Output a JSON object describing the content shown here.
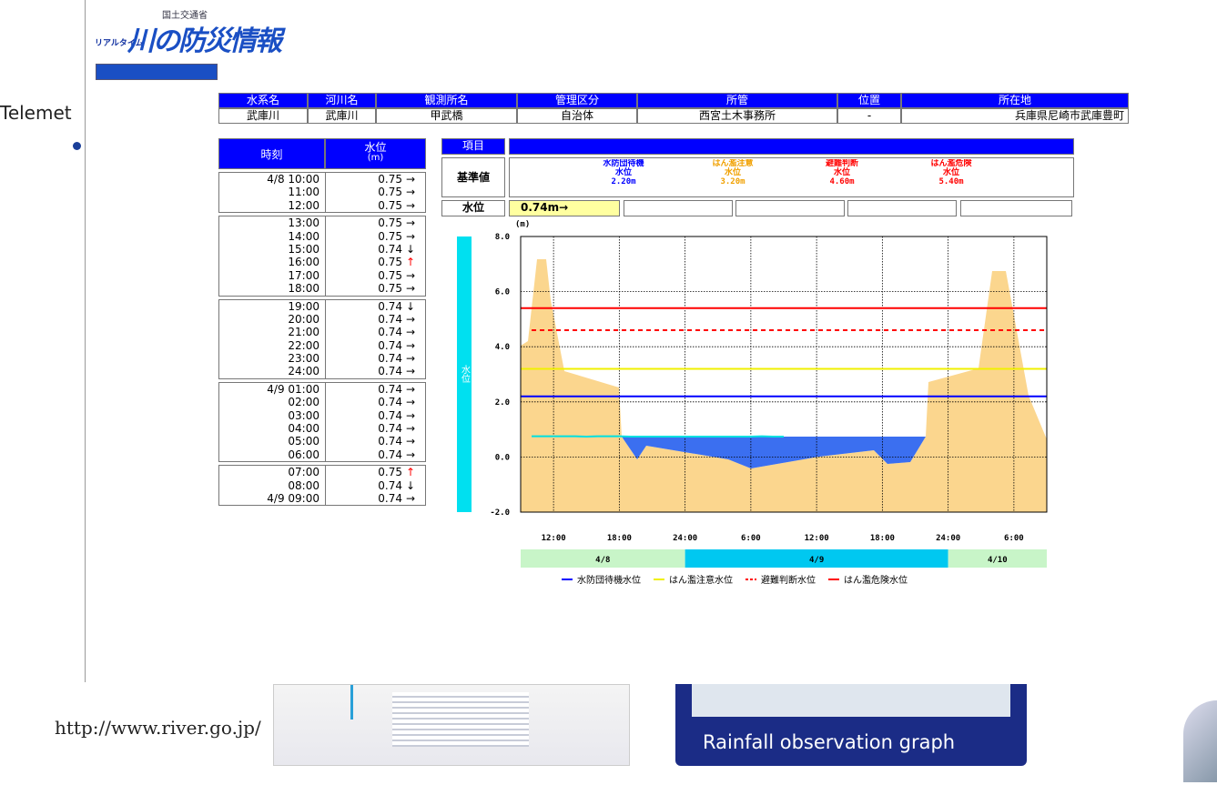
{
  "header": {
    "ministry": "国土交通省",
    "tagline": "リアルタイム",
    "title": "川の防災情報"
  },
  "side_text": "Telemet",
  "station_table": {
    "headers": [
      "水系名",
      "河川名",
      "観測所名",
      "管理区分",
      "所管",
      "位置",
      "所在地"
    ],
    "values": [
      "武庫川",
      "武庫川",
      "甲武橋",
      "自治体",
      "西宮土木事務所",
      "-",
      "兵庫県尼崎市武庫豊町"
    ]
  },
  "level_table": {
    "headers": [
      "時刻",
      "水位"
    ],
    "unit": "(m)",
    "groups": [
      [
        [
          "4/8 10:00",
          0.75,
          "→"
        ],
        [
          "11:00",
          0.75,
          "→"
        ],
        [
          "12:00",
          0.75,
          "→"
        ]
      ],
      [
        [
          "13:00",
          0.75,
          "→"
        ],
        [
          "14:00",
          0.75,
          "→"
        ],
        [
          "15:00",
          0.74,
          "↓"
        ],
        [
          "16:00",
          0.75,
          "↑"
        ],
        [
          "17:00",
          0.75,
          "→"
        ],
        [
          "18:00",
          0.75,
          "→"
        ]
      ],
      [
        [
          "19:00",
          0.74,
          "↓"
        ],
        [
          "20:00",
          0.74,
          "→"
        ],
        [
          "21:00",
          0.74,
          "→"
        ],
        [
          "22:00",
          0.74,
          "→"
        ],
        [
          "23:00",
          0.74,
          "→"
        ],
        [
          "24:00",
          0.74,
          "→"
        ]
      ],
      [
        [
          "4/9 01:00",
          0.74,
          "→"
        ],
        [
          "02:00",
          0.74,
          "→"
        ],
        [
          "03:00",
          0.74,
          "→"
        ],
        [
          "04:00",
          0.74,
          "→"
        ],
        [
          "05:00",
          0.74,
          "→"
        ],
        [
          "06:00",
          0.74,
          "→"
        ]
      ],
      [
        [
          "07:00",
          0.75,
          "↑"
        ],
        [
          "08:00",
          0.74,
          "↓"
        ],
        [
          "4/9 09:00",
          0.74,
          "→"
        ]
      ]
    ]
  },
  "reference": {
    "item_label": "項目",
    "base_label": "基準値",
    "water_label": "水位",
    "current": "0.74m→",
    "levels": [
      {
        "name": "水防団待機",
        "sub": "水位",
        "value": "2.20m",
        "color": "#0000ff"
      },
      {
        "name": "はん濫注意",
        "sub": "水位",
        "value": "3.20m",
        "color": "#f0a000"
      },
      {
        "name": "避難判断",
        "sub": "水位",
        "value": "4.60m",
        "color": "#ff0000"
      },
      {
        "name": "はん濫危険",
        "sub": "水位",
        "value": "5.40m",
        "color": "#ff0000"
      }
    ]
  },
  "chart_data": {
    "type": "line",
    "y_label": "水位",
    "unit": "(m)",
    "xlim": [
      9,
      57
    ],
    "xticks": [
      {
        "value": 12,
        "label": "12:00"
      },
      {
        "value": 18,
        "label": "18:00"
      },
      {
        "value": 24,
        "label": "24:00"
      },
      {
        "value": 30,
        "label": "6:00"
      },
      {
        "value": 36,
        "label": "12:00"
      },
      {
        "value": 42,
        "label": "18:00"
      },
      {
        "value": 48,
        "label": "24:00"
      },
      {
        "value": 54,
        "label": "6:00"
      }
    ],
    "ylim": [
      -2,
      8
    ],
    "yticks": [
      {
        "value": -2,
        "label": "-2.0"
      },
      {
        "value": 0,
        "label": "0.0"
      },
      {
        "value": 2,
        "label": "2.0"
      },
      {
        "value": 4,
        "label": "4.0"
      },
      {
        "value": 6,
        "label": "6.0"
      },
      {
        "value": 8,
        "label": "8.0"
      }
    ],
    "grid": true,
    "dates": [
      "4/8",
      "4/9",
      "4/10"
    ],
    "x": [
      10,
      11,
      12,
      13,
      14,
      15,
      16,
      17,
      18,
      19,
      20,
      21,
      22,
      23,
      24,
      25,
      26,
      27,
      28,
      29,
      30,
      31,
      32,
      33
    ],
    "series": [
      {
        "color": "#00e0e0",
        "values": [
          0.75,
          0.75,
          0.75,
          0.75,
          0.75,
          0.74,
          0.75,
          0.75,
          0.75,
          0.74,
          0.74,
          0.74,
          0.74,
          0.74,
          0.74,
          0.74,
          0.74,
          0.74,
          0.74,
          0.74,
          0.74,
          0.75,
          0.74,
          0.74
        ]
      }
    ],
    "reference_lines": [
      {
        "name": "水防団待機水位",
        "value": 2.2,
        "color": "#0000ff",
        "dashed": false
      },
      {
        "name": "はん濫注意水位",
        "value": 3.2,
        "color": "#f0f000",
        "dashed": false
      },
      {
        "name": "避難判断水位",
        "value": 4.6,
        "color": "#ff0000",
        "dashed": true
      },
      {
        "name": "はん濫危険水位",
        "value": 5.4,
        "color": "#ff0000",
        "dashed": false
      }
    ]
  },
  "footer": {
    "url": "http://www.river.go.jp/",
    "caption": "Rainfall observation graph"
  }
}
